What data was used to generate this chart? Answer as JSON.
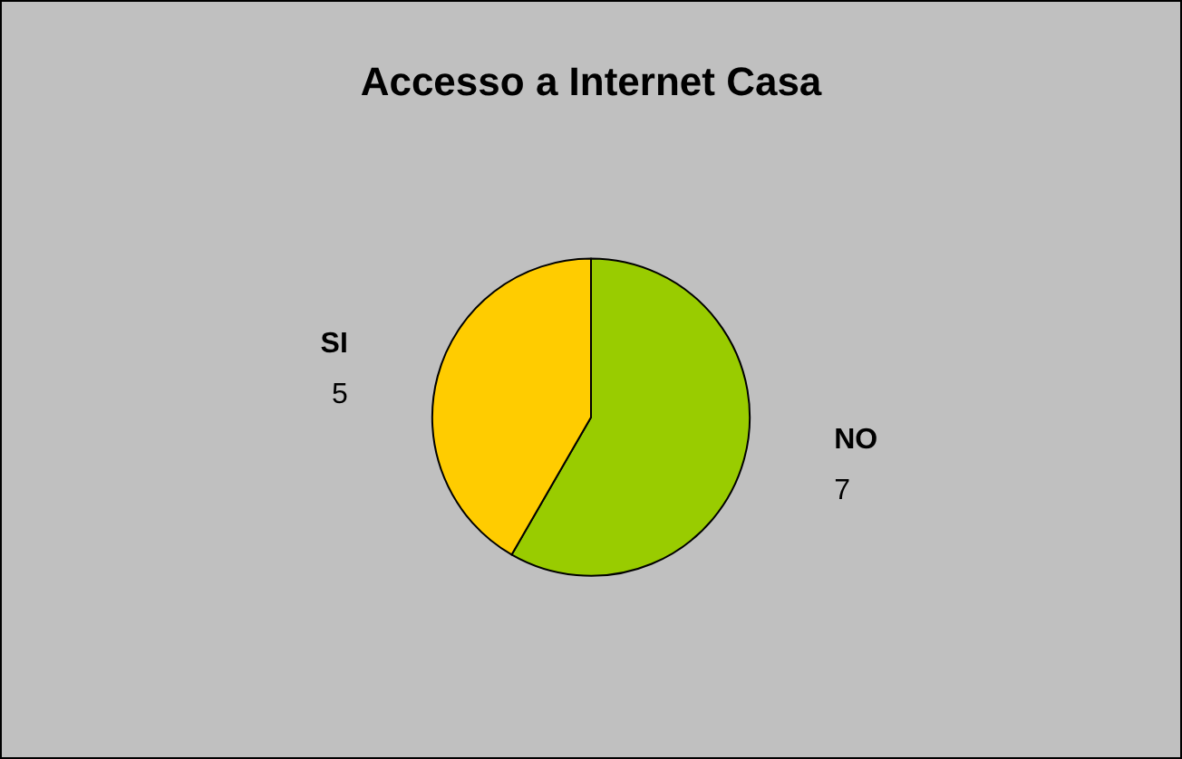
{
  "chart_data": {
    "type": "pie",
    "title": "Accesso a Internet Casa",
    "categories": [
      "NO",
      "SI"
    ],
    "values": [
      7,
      5
    ],
    "colors": [
      "#99cc00",
      "#ffcc00"
    ],
    "data_labels": true
  }
}
